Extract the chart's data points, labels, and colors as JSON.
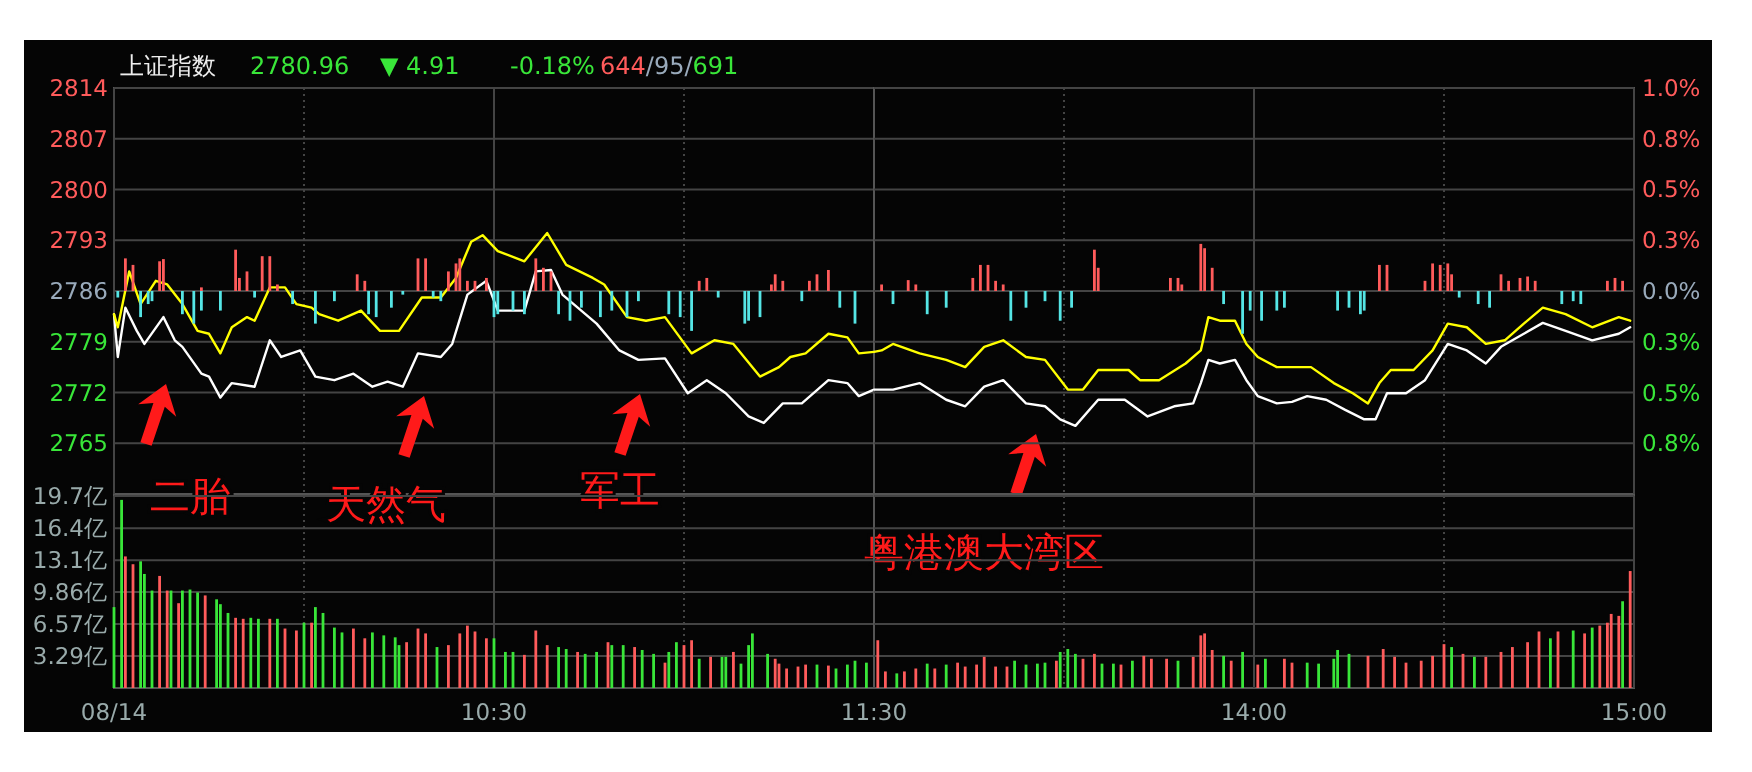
{
  "chart_data": [
    {
      "type": "line",
      "title": "上证指数",
      "annotations": [
        "2780.96",
        "▼ 4.91",
        "-0.18%",
        "644/95/691",
        "二胎",
        "天然气",
        "军工",
        "粤港澳大湾区"
      ],
      "xlim": [
        9.5,
        11.5
      ],
      "xticks": [
        9.5,
        {
          "value": 10,
          "label": null
        },
        10.5,
        {
          "value": 11,
          "label": null
        },
        11.5
      ],
      "ylim": [
        2758,
        2814
      ],
      "yticks": [
        2814,
        2807,
        2800,
        2793,
        2786,
        2779,
        2772,
        2765
      ],
      "grid": true,
      "tick_labels": "y",
      "series": [
        {
          "color": "#ffffff",
          "x": [
            9.5,
            9.51,
            9.53,
            9.56,
            9.58,
            9.63,
            9.66,
            9.68,
            9.73,
            9.75,
            9.78,
            9.81,
            9.87,
            9.91,
            9.94,
            9.99,
            10.03,
            10.08,
            10.13,
            10.18,
            10.22,
            10.26,
            10.3,
            10.36,
            10.39,
            10.43,
            10.48,
            10.51,
            10.58,
            10.61,
            10.65,
            10.68,
            10.77,
            10.83,
            10.88,
            10.95,
            11.01,
            11.06,
            11.11,
            11.17,
            11.21,
            11.26,
            11.31,
            11.38,
            11.43,
            11.46,
            11.5
          ],
          "values": [
            2782.8,
            2776.9,
            2783.7,
            2780.5,
            2778.7,
            2782.4,
            2779.2,
            2778.3,
            2774.6,
            2774.2,
            2771.3,
            2773.3,
            2772.8,
            2779.2,
            2776.9,
            2777.8,
            2774.2,
            2773.7,
            2774.6,
            2772.8,
            2773.5,
            2772.8,
            2777.4,
            2776.9,
            2778.7,
            2785.5,
            2787.4,
            2783.3,
            2783.3,
            2788.7,
            2788.9,
            2785.5,
            2781.5,
            2777.8,
            2776.5,
            2776.7,
            2771.9,
            2773.7,
            2771.9,
            2768.7,
            2767.8,
            2770.5,
            2770.5,
            2773.7,
            2773.3,
            2771.5,
            2772.4
          ]
        },
        {
          "color": "#ffff00",
          "x": [
            9.5,
            9.51,
            9.54,
            9.57,
            9.61,
            9.64,
            9.68,
            9.72,
            9.75,
            9.78,
            9.81,
            9.85,
            9.87,
            9.91,
            9.95,
            9.98,
            10.02,
            10.04,
            10.09,
            10.15,
            10.2,
            10.25,
            10.31,
            10.36,
            10.4,
            10.44,
            10.47,
            10.51,
            10.58,
            10.64,
            10.69,
            10.76,
            10.79,
            10.85,
            10.9,
            10.95,
            11.02,
            11.08,
            11.13,
            11.2,
            11.25,
            11.28,
            11.32,
            11.38,
            11.43,
            11.46,
            11.5
          ],
          "values": [
            2782.8,
            2781,
            2788.7,
            2784.2,
            2787.4,
            2786.9,
            2784.2,
            2780.5,
            2780.1,
            2777.4,
            2781,
            2782.4,
            2781.9,
            2786.5,
            2786.5,
            2784.2,
            2783.7,
            2782.8,
            2781.9,
            2783.3,
            2780.5,
            2780.5,
            2785.1,
            2785.1,
            2787.8,
            2792.8,
            2793.7,
            2791.5,
            2790.1,
            2794,
            2789.6,
            2787.8,
            2786.9,
            2782.4,
            2781.9,
            2782.4,
            2777.4,
            2779.2,
            2778.7,
            2774.2,
            2775.5,
            2776.9,
            2777.4,
            2780.1,
            2779.6,
            2777.4,
            2777.6
          ]
        },
        {
          "type": "bar",
          "color": "#ff5b5b",
          "x": [
            9.53,
            9.55,
            9.62,
            9.63,
            9.73,
            9.82,
            9.83,
            9.85,
            9.89,
            9.91,
            9.93,
            10.14,
            10.16,
            10.3,
            10.32,
            10.38,
            10.4,
            10.41,
            10.43,
            10.45,
            10.48,
            10.61,
            10.63,
            10.65,
            11.04,
            11.06,
            11.23,
            11.24,
            11.26,
            11.33,
            11.35,
            11.38
          ],
          "values": [
            4.5,
            3.6,
            4.1,
            4.4,
            0.5,
            5.7,
            1.8,
            2.7,
            4.8,
            4.8,
            0.9,
            2.3,
            1.4,
            4.5,
            4.5,
            2.7,
            3.8,
            4.5,
            1.4,
            1.4,
            1.8,
            4.5,
            3.2,
            2.7,
            1.4,
            1.8,
            0.9,
            2.3,
            1.4,
            1.4,
            2.3,
            2.9
          ],
          "base": [
            2786,
            2786,
            2786,
            2786,
            2786,
            2786,
            2786,
            2786,
            2786,
            2786,
            2786,
            2786,
            2786,
            2786,
            2786,
            2786,
            2786,
            2786,
            2786,
            2786,
            2786,
            2786,
            2786,
            2786,
            2786,
            2786,
            2786,
            2786,
            2786,
            2786,
            2786,
            2786
          ]
        },
        {
          "type": "bar",
          "color": "#55e5e5",
          "x": [
            9.51,
            9.57,
            9.59,
            9.6,
            9.68,
            9.71,
            9.73,
            9.78,
            9.87,
            9.97,
            10.03,
            10.08,
            10.17,
            10.19,
            10.23,
            10.26,
            10.34,
            10.36,
            10.5,
            10.51,
            10.55,
            10.58,
            10.67,
            10.7,
            10.73,
            10.78,
            10.81,
            10.85,
            10.88,
            10.96,
            10.99,
            11.02,
            11.09,
            11.16,
            11.17,
            11.2,
            11.31,
            11.41,
            11.45
          ],
          "values": [
            -0.9,
            -3.6,
            -1.8,
            -1.4,
            -3.2,
            -4.5,
            -2.7,
            -2.7,
            -0.9,
            -1.8,
            -4.5,
            -1.4,
            -3.2,
            -3.6,
            -2.3,
            -0.5,
            -0.9,
            -1.4,
            -3.6,
            -3.2,
            -2.7,
            -3.2,
            -3.2,
            -4.1,
            -2.3,
            -3.6,
            -2.7,
            -3.6,
            -1.4,
            -3.2,
            -3.6,
            -5.5,
            -0.9,
            -4.5,
            -4.1,
            -3.6,
            -1.4,
            -2.3,
            -4.5
          ],
          "base": [
            2786,
            2786,
            2786,
            2786,
            2786,
            2786,
            2786,
            2786,
            2786,
            2786,
            2786,
            2786,
            2786,
            2786,
            2786,
            2786,
            2786,
            2786,
            2786,
            2786,
            2786,
            2786,
            2786,
            2786,
            2786,
            2786,
            2786,
            2786,
            2786,
            2786,
            2786,
            2786,
            2786,
            2786,
            2786,
            2786,
            2786,
            2786,
            2786
          ]
        }
      ]
    },
    {
      "type": "line",
      "xlim": [
        13,
        15
      ],
      "xticks": [
        {
          "value": 13.5,
          "label": null
        },
        14,
        {
          "value": 14.5,
          "label": null
        },
        15
      ],
      "ylim": [
        2758,
        2814
      ],
      "y2lim": [
        -1.005,
        1.005
      ],
      "y2ticks": [
        {
          "value": 1.005,
          "label": "1.0%"
        },
        {
          "value": 0.754,
          "label": "0.8%"
        },
        {
          "value": 0.503,
          "label": "0.5%"
        },
        {
          "value": 0.251,
          "label": "0.3%"
        },
        {
          "value": 0,
          "label": "0.0%"
        },
        {
          "value": -0.251,
          "label": "0.3%"
        },
        {
          "value": -0.503,
          "label": "0.5%"
        },
        {
          "value": -0.754,
          "label": "0.8%"
        }
      ],
      "grid": true,
      "tick_labels": "y",
      "series": [
        {
          "color": "#ffffff",
          "x": [
            13,
            13.05,
            13.12,
            13.19,
            13.24,
            13.29,
            13.34,
            13.4,
            13.45,
            13.49,
            13.53,
            13.59,
            13.66,
            13.72,
            13.79,
            13.84,
            13.86,
            13.88,
            13.91,
            13.95,
            13.98,
            14.01,
            14.06,
            14.1,
            14.14,
            14.19,
            14.24,
            14.29,
            14.32,
            14.35,
            14.4,
            14.45,
            14.51,
            14.56,
            14.61,
            14.65,
            14.71,
            14.76,
            14.82,
            14.89,
            14.96,
            14.99
          ],
          "values": [
            2772.4,
            2772.4,
            2773.3,
            2771,
            2770.1,
            2772.8,
            2773.7,
            2770.5,
            2770.1,
            2768.3,
            2767.4,
            2771,
            2771,
            2768.7,
            2770.1,
            2770.5,
            2773.3,
            2776.5,
            2776,
            2776.5,
            2773.7,
            2771.5,
            2770.5,
            2770.7,
            2771.5,
            2771,
            2769.6,
            2768.3,
            2768.3,
            2771.9,
            2771.9,
            2773.7,
            2778.7,
            2777.8,
            2776,
            2778.3,
            2780.1,
            2781.6,
            2780.5,
            2779.2,
            2780.1,
            2781
          ]
        },
        {
          "color": "#ffff00",
          "x": [
            13,
            13.02,
            13.05,
            13.12,
            13.19,
            13.24,
            13.29,
            13.34,
            13.4,
            13.45,
            13.51,
            13.55,
            13.59,
            13.67,
            13.7,
            13.75,
            13.82,
            13.86,
            13.88,
            13.91,
            13.95,
            13.98,
            14.01,
            14.06,
            14.1,
            14.15,
            14.21,
            14.26,
            14.3,
            14.33,
            14.36,
            14.42,
            14.47,
            14.51,
            14.56,
            14.61,
            14.66,
            14.71,
            14.76,
            14.82,
            14.89,
            14.96,
            14.99
          ],
          "values": [
            2777.6,
            2777.8,
            2778.7,
            2777.4,
            2776.5,
            2775.5,
            2778.3,
            2779.2,
            2776.9,
            2776.5,
            2772.4,
            2772.4,
            2775.1,
            2775.1,
            2773.7,
            2773.7,
            2776,
            2777.8,
            2782.4,
            2781.9,
            2781.9,
            2778.7,
            2776.9,
            2775.5,
            2775.5,
            2775.5,
            2773.3,
            2771.9,
            2770.5,
            2773.3,
            2775.1,
            2775.1,
            2777.8,
            2781.5,
            2781,
            2778.7,
            2779.2,
            2781.5,
            2783.7,
            2782.8,
            2781,
            2782.4,
            2781.9
          ]
        },
        {
          "type": "bar",
          "color": "#ff5b5b",
          "x": [
            13.02,
            13.09,
            13.11,
            13.26,
            13.28,
            13.3,
            13.32,
            13.34,
            13.58,
            13.59,
            13.78,
            13.8,
            13.81,
            13.86,
            13.87,
            13.89,
            14.33,
            14.35,
            14.45,
            14.47,
            14.49,
            14.51,
            14.52,
            14.65,
            14.67,
            14.7,
            14.72,
            14.74,
            14.93,
            14.95,
            14.97
          ],
          "values": [
            0.9,
            1.5,
            0.9,
            1.8,
            3.6,
            3.6,
            1.4,
            0.9,
            5.7,
            3.2,
            1.8,
            1.8,
            0.9,
            6.5,
            5.9,
            3.2,
            3.6,
            3.6,
            1.4,
            3.8,
            3.6,
            3.8,
            2.3,
            2.3,
            1.4,
            1.8,
            2,
            1.4,
            1.4,
            1.8,
            1.4
          ],
          "base": [
            2786,
            2786,
            2786,
            2786,
            2786,
            2786,
            2786,
            2786,
            2786,
            2786,
            2786,
            2786,
            2786,
            2786,
            2786,
            2786,
            2786,
            2786,
            2786,
            2786,
            2786,
            2786,
            2786,
            2786,
            2786,
            2786,
            2786,
            2786,
            2786,
            2786,
            2786
          ]
        },
        {
          "type": "bar",
          "color": "#55e5e5",
          "x": [
            13.05,
            13.14,
            13.19,
            13.36,
            13.4,
            13.45,
            13.49,
            13.52,
            13.92,
            13.97,
            13.99,
            14.02,
            14.06,
            14.08,
            14.22,
            14.25,
            14.28,
            14.29,
            14.54,
            14.59,
            14.62,
            14.81,
            14.84,
            14.86
          ],
          "values": [
            -1.8,
            -3.2,
            -2.3,
            -4.1,
            -2.3,
            -1.4,
            -4.1,
            -2.3,
            -1.8,
            -5.9,
            -2.7,
            -4.1,
            -2.7,
            -2.3,
            -2.7,
            -2.3,
            -3.2,
            -2.7,
            -0.9,
            -1.8,
            -2.3,
            -1.8,
            -1.4,
            -1.8
          ],
          "base": [
            2786,
            2786,
            2786,
            2786,
            2786,
            2786,
            2786,
            2786,
            2786,
            2786,
            2786,
            2786,
            2786,
            2786,
            2786,
            2786,
            2786,
            2786,
            2786,
            2786,
            2786,
            2786,
            2786,
            2786
          ]
        }
      ]
    },
    {
      "type": "bar",
      "xlim": [
        9.5,
        11.5
      ],
      "xticks": [
        {
          "value": 9.5,
          "label": "08/14"
        },
        {
          "value": 10,
          "label": null
        },
        {
          "value": 10.5,
          "label": "10:30"
        },
        {
          "value": 11,
          "label": null
        },
        {
          "value": 11.5,
          "label": "11:30"
        }
      ],
      "ylim": [
        0,
        19.7
      ],
      "yticks": [
        {
          "value": 3.29,
          "label": "3.29亿"
        },
        {
          "value": 6.57,
          "label": "6.57亿"
        },
        {
          "value": 9.86,
          "label": "9.86亿"
        },
        {
          "value": 13.1,
          "label": "13.1亿"
        },
        {
          "value": 16.4,
          "label": "16.4亿"
        },
        {
          "value": 19.7,
          "label": "19.7亿"
        }
      ],
      "grid": true,
      "series": [
        {
          "color": "#ff5b5b",
          "x": [
            9.53,
            9.55,
            9.62,
            9.64,
            9.67,
            9.74,
            9.82,
            9.84,
            9.91,
            9.95,
            9.98,
            10.02,
            10.13,
            10.16,
            10.27,
            10.3,
            10.32,
            10.38,
            10.41,
            10.43,
            10.45,
            10.48,
            10.58,
            10.61,
            10.64,
            10.72,
            10.8,
            10.87,
            10.95,
            11,
            11.02,
            11.07,
            11.13,
            11.24,
            11.25,
            11.27,
            11.3,
            11.32,
            11.38
          ],
          "values": [
            13.5,
            12.7,
            11.5,
            10,
            8.7,
            9.5,
            7.2,
            7.1,
            7.1,
            6.1,
            5.9,
            6.7,
            6.1,
            5.1,
            4.7,
            6.1,
            5.6,
            4.4,
            5.6,
            6.4,
            5.8,
            5.1,
            3.4,
            5.9,
            4.4,
            3.7,
            4.7,
            4.2,
            2.6,
            4.4,
            4.9,
            3.2,
            3.7,
            3,
            2.5,
            2,
            2.2,
            2.4,
            2.3
          ]
        },
        {
          "color": "#39e639",
          "x": [
            9.5,
            9.52,
            9.57,
            9.58,
            9.6,
            9.65,
            9.68,
            9.7,
            9.72,
            9.77,
            9.78,
            9.8,
            9.86,
            9.88,
            9.93,
            10,
            10.03,
            10.05,
            10.08,
            10.1,
            10.18,
            10.21,
            10.24,
            10.25,
            10.35,
            10.5,
            10.53,
            10.55,
            10.67,
            10.69,
            10.74,
            10.77,
            10.81,
            10.84,
            10.89,
            10.92,
            10.96,
            10.98,
            11.04,
            11.1,
            11.11,
            11.15,
            11.17,
            11.18,
            11.22,
            11.35,
            11.4,
            11.43,
            11.45,
            11.48
          ],
          "values": [
            8.3,
            19.3,
            13,
            11.7,
            10,
            10,
            10,
            10.1,
            9.8,
            9.1,
            8.6,
            7.7,
            7.2,
            7.1,
            7.1,
            6.7,
            8.3,
            7.7,
            6.2,
            5.7,
            5.7,
            5.4,
            5.2,
            4.4,
            4.2,
            5.1,
            3.7,
            3.7,
            4.2,
            4,
            3.5,
            3.7,
            4.4,
            4.4,
            3.9,
            3.5,
            3.7,
            4.7,
            3,
            3.2,
            3.2,
            2.5,
            4.4,
            5.6,
            3.5,
            2.4,
            2,
            2.4,
            2.8,
            2.6
          ]
        }
      ]
    },
    {
      "type": "bar",
      "xlim": [
        13,
        15
      ],
      "xticks": [
        {
          "value": 13.5,
          "label": null
        },
        {
          "value": 14,
          "label": "14:00"
        },
        {
          "value": 14.5,
          "label": null
        },
        {
          "value": 15,
          "label": "15:00"
        }
      ],
      "ylim": [
        0,
        19.7
      ],
      "yticks": [
        {
          "value": 3.29,
          "label": null
        },
        {
          "value": 6.57,
          "label": null
        },
        {
          "value": 9.86,
          "label": null
        },
        {
          "value": 13.1,
          "label": null
        },
        {
          "value": 16.4,
          "label": null
        },
        {
          "value": 19.7,
          "label": null
        }
      ],
      "grid": true,
      "tick_labels": "x",
      "series": [
        {
          "color": "#ff5b5b",
          "x": [
            13.01,
            13.03,
            13.08,
            13.11,
            13.16,
            13.22,
            13.24,
            13.27,
            13.29,
            13.32,
            13.35,
            13.48,
            13.55,
            13.58,
            13.65,
            13.71,
            13.73,
            13.77,
            13.84,
            13.86,
            13.87,
            13.89,
            13.94,
            14.01,
            14.08,
            14.1,
            14.3,
            14.34,
            14.37,
            14.4,
            14.44,
            14.47,
            14.5,
            14.55,
            14.61,
            14.65,
            14.68,
            14.72,
            14.75,
            14.8,
            14.87,
            14.91,
            14.93,
            14.94,
            14.96,
            14.99
          ],
          "values": [
            4.9,
            1.7,
            1.7,
            2,
            2,
            2.6,
            2.2,
            2.4,
            3.2,
            2.2,
            2.2,
            2.8,
            3,
            3.5,
            2.4,
            3.3,
            3,
            3,
            3.2,
            5.4,
            5.6,
            3.9,
            2.8,
            2.4,
            3,
            2.6,
            3.3,
            4,
            3.2,
            2.6,
            2.8,
            3.3,
            4.5,
            3.5,
            3.2,
            3.7,
            4.2,
            4.7,
            5.8,
            5.8,
            5.6,
            6.4,
            6.7,
            7.6,
            7.4,
            12
          ]
        },
        {
          "color": "#39e639",
          "x": [
            13.06,
            13.14,
            13.19,
            13.37,
            13.4,
            13.43,
            13.45,
            13.49,
            13.51,
            13.53,
            13.6,
            13.63,
            13.68,
            13.8,
            13.92,
            13.97,
            14.03,
            14.14,
            14.17,
            14.21,
            14.22,
            14.25,
            14.52,
            14.58,
            14.78,
            14.84,
            14.89,
            14.97
          ],
          "values": [
            1.5,
            2.5,
            2.4,
            2.8,
            2.4,
            2.5,
            2.6,
            3.7,
            4,
            3.5,
            2.5,
            2.5,
            2.8,
            2.8,
            3.3,
            3.7,
            3,
            2.6,
            2.5,
            3,
            3.9,
            3.5,
            4.2,
            3.2,
            5.1,
            5.9,
            6.2,
            8.9
          ]
        }
      ]
    }
  ]
}
